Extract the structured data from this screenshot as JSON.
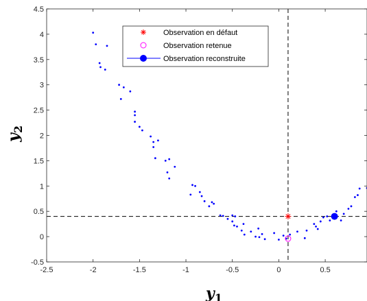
{
  "chart_data": {
    "type": "scatter",
    "xlabel": {
      "main": "y",
      "sub": "1"
    },
    "ylabel": {
      "main": "y",
      "sub": "2"
    },
    "xlim": [
      -2.5,
      0.95
    ],
    "ylim": [
      -0.5,
      4.5
    ],
    "xticks": [
      "-2.5",
      "-2",
      "-1.5",
      "-1",
      "-0.5",
      "0",
      "0.5"
    ],
    "yticks": [
      "-0.5",
      "0",
      "0.5",
      "1",
      "1.5",
      "2",
      "2.5",
      "3",
      "3.5",
      "4",
      "4.5"
    ],
    "grid": false,
    "legend_position": "top-center",
    "reference_lines": {
      "x": 0.1,
      "y": 0.4
    },
    "series": [
      {
        "name": "",
        "role": "data points",
        "color": "#0000ff",
        "points": [
          [
            -2.0,
            4.03
          ],
          [
            -1.97,
            3.8
          ],
          [
            -1.93,
            3.43
          ],
          [
            -1.92,
            3.35
          ],
          [
            -1.87,
            3.3
          ],
          [
            -1.85,
            3.77
          ],
          [
            -1.72,
            3.0
          ],
          [
            -1.7,
            2.72
          ],
          [
            -1.67,
            2.95
          ],
          [
            -1.6,
            2.87
          ],
          [
            -1.55,
            2.47
          ],
          [
            -1.55,
            2.4
          ],
          [
            -1.55,
            2.27
          ],
          [
            -1.5,
            2.17
          ],
          [
            -1.47,
            2.1
          ],
          [
            -1.38,
            1.98
          ],
          [
            -1.35,
            1.87
          ],
          [
            -1.35,
            1.77
          ],
          [
            -1.33,
            1.55
          ],
          [
            -1.3,
            1.9
          ],
          [
            -1.22,
            1.5
          ],
          [
            -1.2,
            1.27
          ],
          [
            -1.18,
            1.53
          ],
          [
            -1.18,
            1.15
          ],
          [
            -1.12,
            1.38
          ],
          [
            -0.95,
            0.83
          ],
          [
            -0.93,
            1.02
          ],
          [
            -0.9,
            1.0
          ],
          [
            -0.85,
            0.88
          ],
          [
            -0.83,
            0.8
          ],
          [
            -0.8,
            0.7
          ],
          [
            -0.75,
            0.6
          ],
          [
            -0.72,
            0.68
          ],
          [
            -0.7,
            0.65
          ],
          [
            -0.63,
            0.42
          ],
          [
            -0.6,
            0.41
          ],
          [
            -0.55,
            0.35
          ],
          [
            -0.5,
            0.42
          ],
          [
            -0.5,
            0.3
          ],
          [
            -0.48,
            0.22
          ],
          [
            -0.47,
            0.4
          ],
          [
            -0.45,
            0.2
          ],
          [
            -0.4,
            0.12
          ],
          [
            -0.38,
            0.25
          ],
          [
            -0.37,
            0.04
          ],
          [
            -0.3,
            0.1
          ],
          [
            -0.25,
            0.0
          ],
          [
            -0.22,
            0.16
          ],
          [
            -0.21,
            -0.01
          ],
          [
            -0.18,
            0.05
          ],
          [
            -0.15,
            -0.05
          ],
          [
            -0.05,
            0.07
          ],
          [
            0.0,
            -0.06
          ],
          [
            0.05,
            0.02
          ],
          [
            0.08,
            -0.04
          ],
          [
            0.12,
            0.04
          ],
          [
            0.2,
            0.1
          ],
          [
            0.28,
            -0.03
          ],
          [
            0.3,
            0.12
          ],
          [
            0.38,
            0.25
          ],
          [
            0.4,
            0.2
          ],
          [
            0.42,
            0.15
          ],
          [
            0.45,
            0.3
          ],
          [
            0.48,
            0.38
          ],
          [
            0.52,
            0.4
          ],
          [
            0.55,
            0.32
          ],
          [
            0.58,
            0.38
          ],
          [
            0.62,
            0.5
          ],
          [
            0.67,
            0.32
          ],
          [
            0.7,
            0.45
          ],
          [
            0.75,
            0.55
          ],
          [
            0.78,
            0.6
          ],
          [
            0.82,
            0.78
          ],
          [
            0.85,
            0.82
          ],
          [
            0.87,
            0.95
          ],
          [
            0.95,
            0.96
          ]
        ]
      },
      {
        "name": "Observation en défaut",
        "marker": "asterisk",
        "color": "#ff0000",
        "points": [
          [
            0.1,
            0.4
          ]
        ]
      },
      {
        "name": "Observation retenue",
        "marker": "open-circle",
        "color": "#ff00ff",
        "points": [
          [
            0.1,
            -0.04
          ]
        ]
      },
      {
        "name": "Observation reconstruite",
        "marker": "filled-circle",
        "color": "#0000ff",
        "points": [
          [
            0.6,
            0.4
          ]
        ]
      }
    ]
  }
}
